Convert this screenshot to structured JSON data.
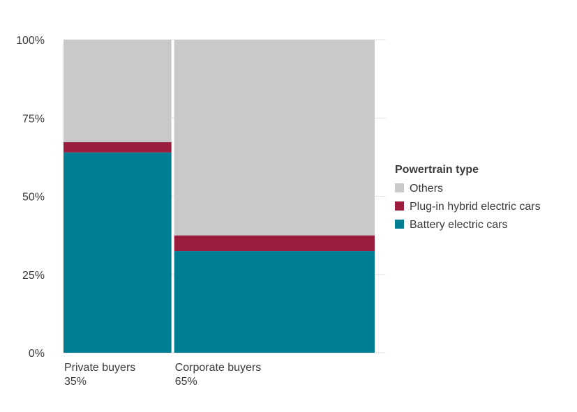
{
  "chart_data": {
    "type": "bar",
    "stacked": true,
    "variable_width": true,
    "ylim": [
      0,
      100
    ],
    "y_ticks": [
      0,
      25,
      50,
      75,
      100
    ],
    "y_tick_labels": [
      "0%",
      "25%",
      "50%",
      "75%",
      "100%"
    ],
    "grid": true,
    "categories": [
      {
        "name": "Private buyers",
        "share": 35,
        "share_label": "35%"
      },
      {
        "name": "Corporate buyers",
        "share": 65,
        "share_label": "65%"
      }
    ],
    "series": [
      {
        "name": "Battery electric cars",
        "color": "#007E93",
        "values": [
          64,
          32.5
        ]
      },
      {
        "name": "Plug-in hybrid electric cars",
        "color": "#9B1D3E",
        "values": [
          3.3,
          5
        ]
      },
      {
        "name": "Others",
        "color": "#C9C9CB",
        "values": [
          32.7,
          62.5
        ]
      }
    ],
    "legend": {
      "title": "Powertrain type",
      "placement": "right",
      "order": [
        "Others",
        "Plug-in hybrid electric cars",
        "Battery electric cars"
      ]
    }
  }
}
